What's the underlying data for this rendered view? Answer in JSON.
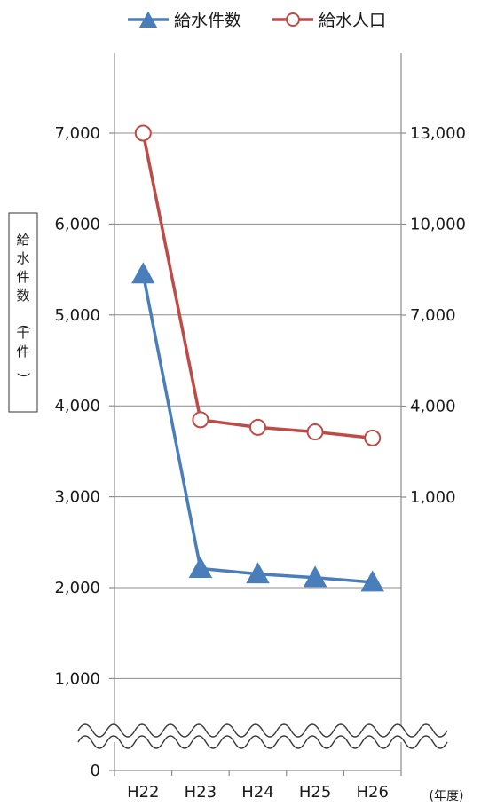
{
  "chart_data": {
    "type": "line",
    "title": "",
    "categories": [
      "H22",
      "H23",
      "H24",
      "H25",
      "H26"
    ],
    "xlabel": "(年度)",
    "ylabel": "給水件数（千件）",
    "y_left": {
      "ticks": [
        "0",
        "1,000",
        "2,000",
        "3,000",
        "4,000",
        "5,000",
        "6,000",
        "7,000"
      ],
      "lim": [
        0,
        7000
      ],
      "axis_break": true
    },
    "y_right": {
      "ticks": [
        "1,000",
        "4,000",
        "7,000",
        "10,000",
        "13,000"
      ],
      "lim": [
        -2000,
        16000
      ]
    },
    "grid": true,
    "legend": "top",
    "series": [
      {
        "name": "給水件数",
        "axis": "left",
        "marker": "triangle",
        "color": "#4a7ebb",
        "values": [
          5450,
          2210,
          2150,
          2110,
          2060
        ]
      },
      {
        "name": "給水人口",
        "axis": "right",
        "marker": "circle-open",
        "color": "#be4b48",
        "values": [
          13000,
          3550,
          3300,
          3150,
          2950
        ]
      }
    ]
  }
}
